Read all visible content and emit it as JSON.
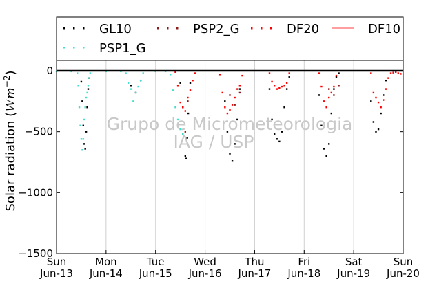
{
  "chart_data": {
    "type": "scatter",
    "ylabel_text": "Solar radiation (",
    "ylabel_unit": "Wm",
    "ylabel_exp": "−2",
    "ylabel_close": ")",
    "ylim": [
      -1500,
      60
    ],
    "yticks": [
      0,
      -500,
      -1000,
      -1500
    ],
    "ytick_labels": [
      "0",
      "−500",
      "−1000",
      "−1500"
    ],
    "xlim": [
      0,
      7
    ],
    "xticks": [
      {
        "x": 0,
        "day": "Sun",
        "date": "Jun-13"
      },
      {
        "x": 1,
        "day": "Mon",
        "date": "Jun-14"
      },
      {
        "x": 2,
        "day": "Tue",
        "date": "Jun-15"
      },
      {
        "x": 3,
        "day": "Wed",
        "date": "Jun-16"
      },
      {
        "x": 4,
        "day": "Thu",
        "date": "Jun-17"
      },
      {
        "x": 5,
        "day": "Fri",
        "date": "Jun-18"
      },
      {
        "x": 6,
        "day": "Sat",
        "date": "Jun-19"
      },
      {
        "x": 7,
        "day": "Sun",
        "date": "Jun-20"
      }
    ],
    "grid": "vertical",
    "legend_position": "top",
    "watermark": [
      "Grupo de Micrometeorologia",
      "IAG / USP"
    ],
    "series": [
      {
        "name": "GL10",
        "color": "#000000",
        "marker": "dots",
        "x": [
          0.5,
          0.52,
          0.54,
          0.56,
          0.58,
          0.6,
          0.62,
          0.64,
          0.66,
          1.5,
          1.6,
          1.7,
          2.5,
          2.55,
          2.6,
          2.62,
          2.64,
          2.66,
          2.7,
          3.4,
          3.45,
          3.5,
          3.55,
          3.6,
          3.65,
          3.7,
          4.3,
          4.35,
          4.4,
          4.45,
          4.5,
          4.55,
          4.6,
          4.65,
          4.7,
          5.3,
          5.35,
          5.4,
          5.45,
          5.5,
          5.55,
          5.6,
          5.65,
          5.7,
          6.35,
          6.4,
          6.45,
          6.5,
          6.55,
          6.6,
          6.65
        ],
        "y": [
          -90,
          -250,
          -450,
          -600,
          -640,
          -500,
          -300,
          -150,
          -60,
          -120,
          -180,
          -80,
          -100,
          -520,
          -700,
          -720,
          -550,
          -350,
          -100,
          -250,
          -500,
          -680,
          -740,
          -600,
          -400,
          -150,
          -150,
          -400,
          -520,
          -560,
          -580,
          -500,
          -300,
          -150,
          -50,
          -200,
          -450,
          -640,
          -700,
          -600,
          -350,
          -150,
          -50,
          -20,
          -250,
          -420,
          -500,
          -480,
          -350,
          -200,
          -80
        ]
      },
      {
        "name": "PSP2_G",
        "color": "#8b1a1a",
        "marker": "dots",
        "x": [
          2.55,
          2.6,
          2.65,
          3.5,
          3.6,
          3.7,
          5.5,
          5.6,
          5.7
        ],
        "y": [
          -300,
          -500,
          -250,
          -200,
          -280,
          -180,
          -150,
          -200,
          -120
        ]
      },
      {
        "name": "DF20",
        "color": "#ff0000",
        "marker": "dots",
        "x": [
          2.4,
          2.45,
          2.5,
          2.55,
          2.6,
          2.65,
          2.7,
          2.75,
          2.8,
          3.3,
          3.35,
          3.4,
          3.45,
          3.5,
          3.55,
          3.6,
          3.65,
          3.7,
          3.75,
          4.3,
          4.35,
          4.4,
          4.45,
          4.5,
          4.55,
          4.6,
          4.65,
          4.7,
          5.3,
          5.35,
          5.4,
          5.45,
          5.5,
          5.55,
          5.6,
          5.65,
          6.35,
          6.4,
          6.45,
          6.5,
          6.55,
          6.6,
          6.65,
          6.7,
          6.75,
          6.8,
          6.85,
          6.9,
          6.95
        ],
        "y": [
          -10,
          -120,
          -260,
          -300,
          -330,
          -220,
          -160,
          -80,
          -20,
          -30,
          -180,
          -300,
          -350,
          -320,
          -280,
          -220,
          -150,
          -120,
          -40,
          -20,
          -90,
          -120,
          -150,
          -140,
          -130,
          -120,
          -100,
          -20,
          -20,
          -130,
          -250,
          -300,
          -220,
          -180,
          -130,
          -40,
          -20,
          -180,
          -220,
          -260,
          -300,
          -240,
          -150,
          -60,
          -20,
          -15,
          -10,
          -20,
          -25
        ]
      },
      {
        "name": "DF10",
        "color": "#ff7f7f",
        "marker": "line",
        "x": [
          0,
          7
        ],
        "y": [
          0,
          0
        ]
      },
      {
        "name": "PSP1_G",
        "color": "#40e0d0",
        "marker": "dots",
        "x": [
          0,
          0.3,
          0.42,
          0.44,
          0.46,
          0.48,
          0.5,
          0.52,
          0.54,
          0.56,
          0.58,
          0.6,
          0.62,
          0.64,
          0.66,
          0.68,
          1.0,
          1.3,
          1.4,
          1.45,
          1.5,
          1.55,
          1.6,
          1.65,
          1.7,
          1.75,
          2.0,
          2.2,
          2.3,
          2.35,
          2.4,
          2.45,
          2.5,
          2.55
        ],
        "y": [
          -5,
          -5,
          -20,
          -120,
          -300,
          -450,
          -560,
          -650,
          -560,
          -400,
          -300,
          -220,
          -180,
          -120,
          -60,
          -20,
          -5,
          -5,
          -20,
          -100,
          -150,
          -250,
          -180,
          -130,
          -80,
          -20,
          -5,
          -5,
          -30,
          -160,
          -300,
          -400,
          -480,
          -520
        ]
      }
    ]
  }
}
